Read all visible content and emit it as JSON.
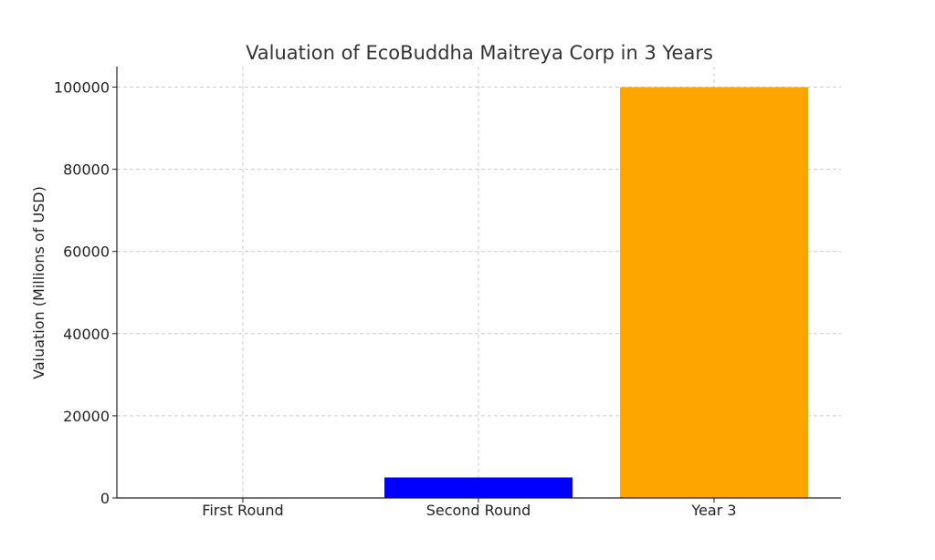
{
  "chart_data": {
    "type": "bar",
    "title": "Valuation of EcoBuddha Maitreya Corp in 3 Years",
    "xlabel": "",
    "ylabel": "Valuation (Millions of USD)",
    "categories": [
      "First Round",
      "Second Round",
      "Year 3"
    ],
    "values": [
      0,
      5000,
      100000
    ],
    "colors": [
      "#ffffff",
      "#0000ff",
      "#ffa500"
    ],
    "ylim": [
      0,
      105000
    ],
    "yticks": [
      0,
      20000,
      40000,
      60000,
      80000,
      100000
    ],
    "grid": true,
    "legend": "none"
  }
}
